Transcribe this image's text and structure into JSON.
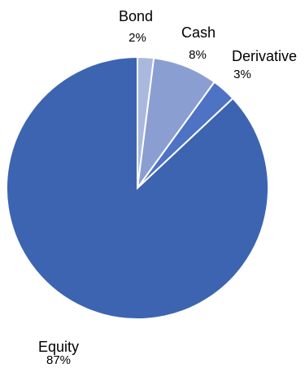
{
  "chart_data": {
    "type": "pie",
    "title": "",
    "start_angle_deg": 0,
    "direction": "clockwise",
    "slices": [
      {
        "label": "Bond",
        "value": 2,
        "display": "2%",
        "color": "#A9B8DD"
      },
      {
        "label": "Cash",
        "value": 8,
        "display": "8%",
        "color": "#8A9ED2"
      },
      {
        "label": "Derivative",
        "value": 3,
        "display": "3%",
        "color": "#4E72C4"
      },
      {
        "label": "Equity",
        "value": 87,
        "display": "87%",
        "color": "#3C64B1"
      }
    ]
  }
}
